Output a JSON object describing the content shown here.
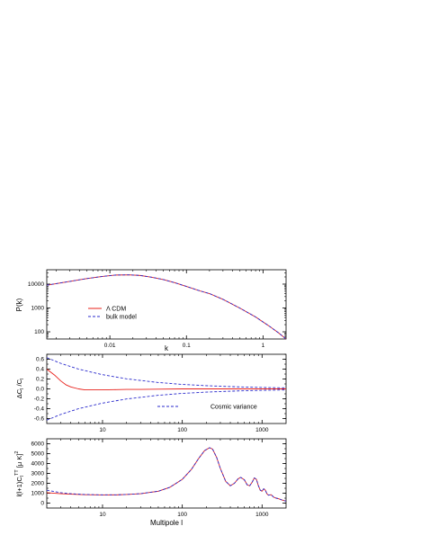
{
  "chart_data": [
    {
      "type": "line",
      "xlabel": "k",
      "ylabel": "P(k)",
      "xscale": "log",
      "yscale": "log",
      "xlim": [
        0.0015,
        2.0
      ],
      "ylim": [
        50,
        40000
      ],
      "xticks": [
        {
          "v": 0.01,
          "label": "0.01"
        },
        {
          "v": 0.1,
          "label": "0.1"
        },
        {
          "v": 1,
          "label": "1"
        }
      ],
      "yticks": [
        {
          "v": 100,
          "label": "100"
        },
        {
          "v": 1000,
          "label": "1000"
        },
        {
          "v": 10000,
          "label": "10000"
        }
      ],
      "legend": {
        "placement": "lower-left",
        "entries": [
          {
            "label": "Λ CDM",
            "style": "solid",
            "color": "#e8201a"
          },
          {
            "label": "bulk model",
            "style": "dashed",
            "color": "#2a2acc"
          }
        ]
      },
      "series": [
        {
          "name": "Λ CDM",
          "color": "#e8201a",
          "style": "solid",
          "x": [
            0.0015,
            0.002,
            0.003,
            0.005,
            0.008,
            0.012,
            0.018,
            0.025,
            0.035,
            0.05,
            0.07,
            0.1,
            0.15,
            0.2,
            0.3,
            0.5,
            0.8,
            1.2,
            1.6,
            2.0
          ],
          "y": [
            9000,
            10500,
            13000,
            17000,
            21000,
            24000,
            24500,
            23000,
            19500,
            15500,
            11500,
            8000,
            5200,
            4000,
            2300,
            980,
            420,
            175,
            90,
            50
          ]
        },
        {
          "name": "bulk model",
          "color": "#2a2acc",
          "style": "dashed",
          "x": [
            0.0015,
            0.002,
            0.003,
            0.005,
            0.008,
            0.012,
            0.018,
            0.025,
            0.035,
            0.05,
            0.07,
            0.1,
            0.15,
            0.2,
            0.3,
            0.5,
            0.8,
            1.2,
            1.6,
            2.0
          ],
          "y": [
            9000,
            10500,
            13000,
            17000,
            21000,
            24000,
            24500,
            23000,
            19500,
            15500,
            11500,
            8000,
            5200,
            4000,
            2300,
            980,
            420,
            175,
            90,
            50
          ]
        }
      ]
    },
    {
      "type": "line",
      "xlabel": "",
      "ylabel": "ΔC_l /C_l",
      "xscale": "log",
      "yscale": "linear",
      "xlim": [
        2,
        2000
      ],
      "ylim": [
        -0.7,
        0.7
      ],
      "xticks": [
        {
          "v": 10,
          "label": "10"
        },
        {
          "v": 100,
          "label": "100"
        },
        {
          "v": 1000,
          "label": "1000"
        }
      ],
      "yticks": [
        {
          "v": -0.6,
          "label": "-0.6"
        },
        {
          "v": -0.4,
          "label": "-0.4"
        },
        {
          "v": -0.2,
          "label": "-0.2"
        },
        {
          "v": 0,
          "label": "0.0"
        },
        {
          "v": 0.2,
          "label": "0.2"
        },
        {
          "v": 0.4,
          "label": "0.4"
        },
        {
          "v": 0.6,
          "label": "0.6"
        }
      ],
      "legend": {
        "placement": "lower-right",
        "entries": [
          {
            "label": "Cosmic variance",
            "style": "dashed",
            "color": "#2a2acc"
          }
        ]
      },
      "series": [
        {
          "name": "",
          "color": "#e8201a",
          "style": "solid",
          "x": [
            2,
            2.5,
            3,
            3.5,
            4,
            5,
            6,
            8,
            10,
            15,
            20,
            30,
            50,
            100,
            200,
            500,
            1000,
            2000
          ],
          "y": [
            0.4,
            0.28,
            0.16,
            0.08,
            0.04,
            0.0,
            -0.02,
            -0.02,
            -0.02,
            -0.015,
            -0.01,
            -0.01,
            -0.005,
            0.0,
            0.0,
            0.0,
            0.0,
            0.0
          ]
        },
        {
          "name": "Cosmic variance",
          "color": "#2a2acc",
          "style": "dashed",
          "x": [
            2,
            3,
            5,
            10,
            20,
            50,
            100,
            200,
            500,
            1000,
            2000
          ],
          "y": [
            0.632,
            0.516,
            0.4,
            0.287,
            0.204,
            0.129,
            0.091,
            0.065,
            0.041,
            0.029,
            0.02
          ]
        },
        {
          "name": "",
          "color": "#2a2acc",
          "style": "dashed",
          "x": [
            2,
            3,
            5,
            10,
            20,
            50,
            100,
            200,
            500,
            1000,
            2000
          ],
          "y": [
            -0.632,
            -0.516,
            -0.4,
            -0.287,
            -0.204,
            -0.129,
            -0.091,
            -0.065,
            -0.041,
            -0.029,
            -0.02
          ]
        }
      ]
    },
    {
      "type": "line",
      "xlabel": "Multipole l",
      "ylabel": "l(l+1)C_l^TT [μ K]^2",
      "xscale": "log",
      "yscale": "linear",
      "xlim": [
        2,
        2000
      ],
      "ylim": [
        -500,
        6500
      ],
      "xticks": [
        {
          "v": 10,
          "label": "10"
        },
        {
          "v": 100,
          "label": "100"
        },
        {
          "v": 1000,
          "label": "1000"
        }
      ],
      "yticks": [
        {
          "v": 0,
          "label": "0"
        },
        {
          "v": 1000,
          "label": "1000"
        },
        {
          "v": 2000,
          "label": "2000"
        },
        {
          "v": 3000,
          "label": "3000"
        },
        {
          "v": 4000,
          "label": "4000"
        },
        {
          "v": 5000,
          "label": "5000"
        },
        {
          "v": 6000,
          "label": "6000"
        }
      ],
      "series": [
        {
          "name": "",
          "color": "#e8201a",
          "style": "solid",
          "x": [
            2,
            3,
            4,
            6,
            10,
            15,
            20,
            30,
            50,
            70,
            100,
            130,
            160,
            190,
            220,
            240,
            270,
            300,
            350,
            400,
            450,
            500,
            540,
            600,
            650,
            700,
            750,
            800,
            850,
            900,
            950,
            1000,
            1050,
            1100,
            1150,
            1200,
            1300,
            1400,
            1500,
            1600,
            1800,
            2000
          ],
          "y": [
            1050,
            950,
            900,
            850,
            820,
            830,
            870,
            950,
            1200,
            1600,
            2400,
            3400,
            4500,
            5300,
            5600,
            5450,
            4600,
            3500,
            2200,
            1750,
            2000,
            2450,
            2600,
            2350,
            1850,
            1750,
            2100,
            2550,
            2400,
            1750,
            1300,
            1200,
            1450,
            1300,
            950,
            800,
            850,
            600,
            500,
            450,
            300,
            200
          ]
        },
        {
          "name": "",
          "color": "#2a2acc",
          "style": "dashed",
          "x": [
            2,
            3,
            4,
            6,
            10,
            15,
            20,
            30,
            50,
            70,
            100,
            130,
            160,
            190,
            220,
            240,
            270,
            300,
            350,
            400,
            450,
            500,
            540,
            600,
            650,
            700,
            750,
            800,
            850,
            900,
            950,
            1000,
            1050,
            1100,
            1150,
            1200,
            1300,
            1400,
            1500,
            1600,
            1800,
            2000
          ],
          "y": [
            1300,
            1050,
            950,
            870,
            830,
            835,
            872,
            952,
            1200,
            1600,
            2400,
            3400,
            4500,
            5300,
            5600,
            5450,
            4600,
            3500,
            2200,
            1750,
            2000,
            2450,
            2600,
            2350,
            1850,
            1750,
            2100,
            2550,
            2400,
            1750,
            1300,
            1200,
            1450,
            1300,
            950,
            800,
            850,
            600,
            500,
            450,
            300,
            200
          ]
        }
      ]
    }
  ]
}
